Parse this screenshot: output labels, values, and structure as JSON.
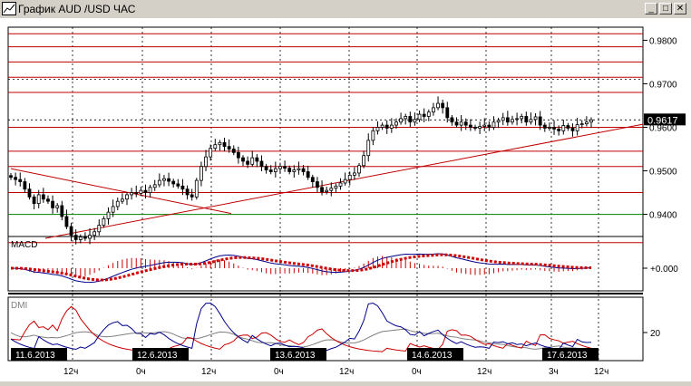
{
  "window": {
    "title": "График AUD /USD ЧАС",
    "minimize_label": "_",
    "maximize_label": "□",
    "close_label": "✕",
    "icon": "chart-icon"
  },
  "colors": {
    "background": "#ffffff",
    "resistance_line": "#c00000",
    "support_line": "#008000",
    "candle": "#000000",
    "macd_line": "#00008b",
    "signal_line": "#cc0000",
    "dmi_plus": "#00008b",
    "dmi_minus": "#cc0000",
    "adx": "#808080"
  },
  "price_panel": {
    "y_ticks": [
      "0.9800",
      "0.9700",
      "0.9600",
      "0.9500",
      "0.9400"
    ],
    "current_price": "0.9617"
  },
  "macd_panel": {
    "label": "MACD",
    "zero_label": "+0.000"
  },
  "dmi_panel": {
    "label": "DMI",
    "level_label": "20"
  },
  "time_axis": {
    "date_labels": [
      "11.6.2013",
      "12.6.2013",
      "13.6.2013",
      "14.6.2013",
      "17.6.2013"
    ],
    "hour_labels": [
      "12ч",
      "0ч",
      "12ч",
      "0ч",
      "12ч",
      "0ч",
      "12ч",
      "3ч",
      "12ч"
    ]
  },
  "chart_data": {
    "type": "candlestick",
    "symbol": "AUD /USD",
    "timeframe": "ЧАС",
    "ylim": [
      0.932,
      0.983
    ],
    "y_ticks": [
      0.98,
      0.97,
      0.96,
      0.95,
      0.94
    ],
    "horizontal_levels": [
      0.9815,
      0.9785,
      0.975,
      0.9715,
      0.968,
      0.96,
      0.9545,
      0.951,
      0.945,
      0.94,
      0.9335
    ],
    "support_level_green": 0.94,
    "last_price": 0.9617,
    "close_series": [
      0.9485,
      0.948,
      0.9475,
      0.9458,
      0.944,
      0.9425,
      0.9445,
      0.9435,
      0.943,
      0.9415,
      0.942,
      0.9395,
      0.9372,
      0.9352,
      0.9342,
      0.9348,
      0.9345,
      0.9352,
      0.936,
      0.9375,
      0.939,
      0.9405,
      0.9418,
      0.943,
      0.9435,
      0.9445,
      0.945,
      0.9448,
      0.9455,
      0.945,
      0.9462,
      0.9468,
      0.9478,
      0.9482,
      0.9476,
      0.947,
      0.9465,
      0.9458,
      0.9445,
      0.944,
      0.9478,
      0.951,
      0.9532,
      0.9552,
      0.956,
      0.9565,
      0.9556,
      0.955,
      0.9542,
      0.953,
      0.9522,
      0.9515,
      0.953,
      0.9522,
      0.951,
      0.9502,
      0.9498,
      0.9505,
      0.951,
      0.9506,
      0.9498,
      0.9502,
      0.9505,
      0.9498,
      0.9485,
      0.9475,
      0.9462,
      0.9452,
      0.9455,
      0.946,
      0.9465,
      0.9472,
      0.948,
      0.949,
      0.9495,
      0.9512,
      0.9535,
      0.957,
      0.9592,
      0.96,
      0.9605,
      0.9598,
      0.9605,
      0.9612,
      0.962,
      0.9625,
      0.9612,
      0.9618,
      0.963,
      0.9625,
      0.9635,
      0.9645,
      0.9655,
      0.9645,
      0.9622,
      0.9612,
      0.9605,
      0.9612,
      0.9605,
      0.96,
      0.9598,
      0.9602,
      0.9605,
      0.96,
      0.9612,
      0.9616,
      0.9622,
      0.9612,
      0.9618,
      0.962,
      0.9625,
      0.9612,
      0.9618,
      0.9624,
      0.9605,
      0.9598,
      0.96,
      0.9596,
      0.9592,
      0.9604,
      0.9598,
      0.9592,
      0.9606,
      0.9608,
      0.9612,
      0.9617
    ]
  }
}
